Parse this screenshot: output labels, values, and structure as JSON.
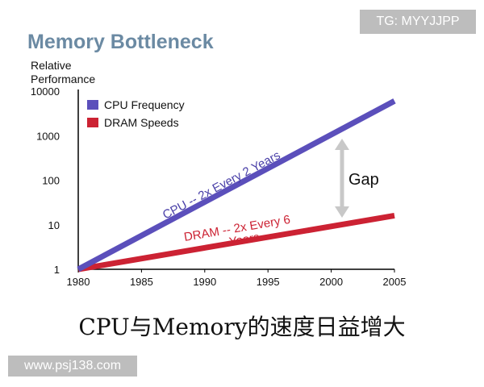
{
  "watermarks": {
    "top": "TG: MYYJJPP",
    "bottom": "www.psj138.com"
  },
  "caption": "CPU与Memory的速度日益增大",
  "colors": {
    "cpu": "#5b4fbb",
    "dram": "#cc2233",
    "title": "#6b8aa3",
    "arrow": "#c8c8c8"
  },
  "chart_data": {
    "type": "line",
    "title": "Memory Bottleneck",
    "ylabel": [
      "Relative",
      "Performance"
    ],
    "xlabel": "",
    "x_ticks": [
      "1980",
      "1985",
      "1990",
      "1995",
      "2000",
      "2005"
    ],
    "y_ticks": [
      "1",
      "10",
      "100",
      "1000",
      "10000"
    ],
    "xlim": [
      1980,
      2005
    ],
    "ylim": [
      1,
      10000
    ],
    "yscale": "log",
    "grid": false,
    "legend_position": "top-left",
    "series": [
      {
        "name": "CPU Frequency",
        "color": "#5b4fbb",
        "x": [
          1980,
          2005
        ],
        "y": [
          1,
          6000
        ]
      },
      {
        "name": "DRAM Speeds",
        "color": "#cc2233",
        "x": [
          1980,
          2005
        ],
        "y": [
          1,
          16
        ]
      }
    ],
    "annotations": {
      "cpu": "CPU -- 2x Every 2 Years",
      "dram_line1": "DRAM -- 2x Every 6",
      "dram_line2": "Years",
      "gap": "Gap"
    }
  }
}
